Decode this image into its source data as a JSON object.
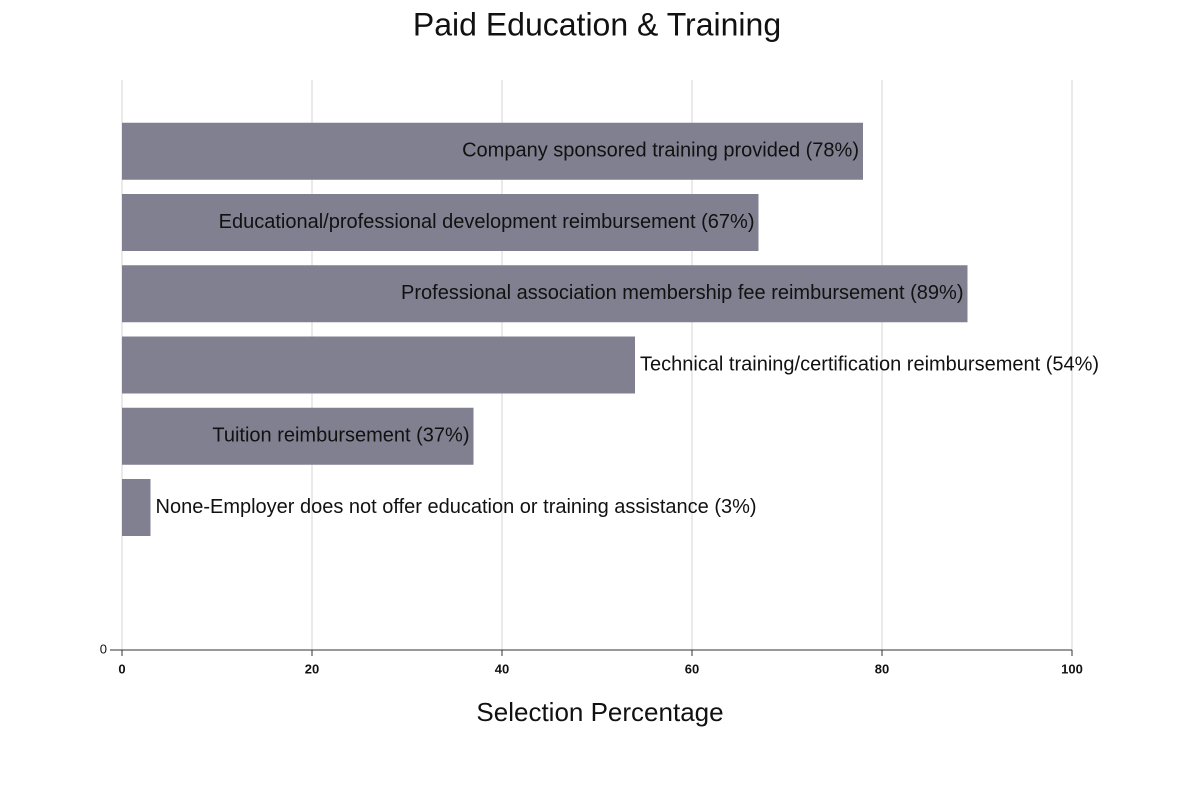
{
  "chart_data": {
    "type": "bar",
    "orientation": "horizontal",
    "title": "Paid Education & Training",
    "x_label": "Selection Percentage",
    "values": [
      78,
      67,
      89,
      54,
      37,
      3
    ],
    "value_labels": [
      "Company sponsored training provided (78%)",
      "Educational/professional development reimbursement (67%)",
      "Professional association membership fee reimbursement (89%)",
      "Technical training/certification reimbursement (54%)",
      "Tuition reimbursement (37%)",
      "None-Employer does not offer education or training assistance (3%)"
    ],
    "color": "#808090",
    "xlim": [
      0,
      100
    ],
    "xticks": [
      0,
      20,
      40,
      60,
      80,
      100
    ],
    "yticks": [
      0
    ],
    "grid": true
  }
}
